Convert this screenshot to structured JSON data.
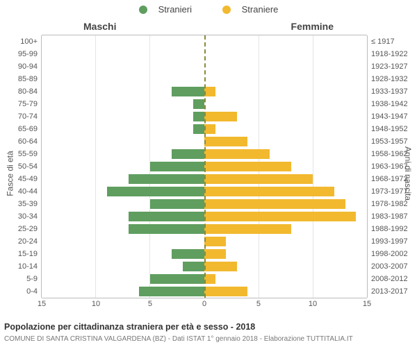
{
  "type": "population-pyramid",
  "legend": {
    "male": {
      "label": "Stranieri",
      "color": "#5f9e5f"
    },
    "female": {
      "label": "Straniere",
      "color": "#f2b92f"
    }
  },
  "side_titles": {
    "left": "Maschi",
    "right": "Femmine"
  },
  "y_axis_left_title": "Fasce di età",
  "y_axis_right_title": "Anni di nascita",
  "x_axis": {
    "max": 15,
    "ticks": [
      15,
      10,
      5,
      0,
      5,
      10,
      15
    ]
  },
  "grid_color": "#e5e5e5",
  "center_line_color": "#8a8a3a",
  "background_color": "#ffffff",
  "row_font_size": 11,
  "rows": [
    {
      "age": "100+",
      "years": "≤ 1917",
      "male": 0,
      "female": 0
    },
    {
      "age": "95-99",
      "years": "1918-1922",
      "male": 0,
      "female": 0
    },
    {
      "age": "90-94",
      "years": "1923-1927",
      "male": 0,
      "female": 0
    },
    {
      "age": "85-89",
      "years": "1928-1932",
      "male": 0,
      "female": 0
    },
    {
      "age": "80-84",
      "years": "1933-1937",
      "male": 3,
      "female": 1
    },
    {
      "age": "75-79",
      "years": "1938-1942",
      "male": 1,
      "female": 0
    },
    {
      "age": "70-74",
      "years": "1943-1947",
      "male": 1,
      "female": 3
    },
    {
      "age": "65-69",
      "years": "1948-1952",
      "male": 1,
      "female": 1
    },
    {
      "age": "60-64",
      "years": "1953-1957",
      "male": 0,
      "female": 4
    },
    {
      "age": "55-59",
      "years": "1958-1962",
      "male": 3,
      "female": 6
    },
    {
      "age": "50-54",
      "years": "1963-1967",
      "male": 5,
      "female": 8
    },
    {
      "age": "45-49",
      "years": "1968-1972",
      "male": 7,
      "female": 10
    },
    {
      "age": "40-44",
      "years": "1973-1977",
      "male": 9,
      "female": 12
    },
    {
      "age": "35-39",
      "years": "1978-1982",
      "male": 5,
      "female": 13
    },
    {
      "age": "30-34",
      "years": "1983-1987",
      "male": 7,
      "female": 14
    },
    {
      "age": "25-29",
      "years": "1988-1992",
      "male": 7,
      "female": 8
    },
    {
      "age": "20-24",
      "years": "1993-1997",
      "male": 0,
      "female": 2
    },
    {
      "age": "15-19",
      "years": "1998-2002",
      "male": 3,
      "female": 2
    },
    {
      "age": "10-14",
      "years": "2003-2007",
      "male": 2,
      "female": 3
    },
    {
      "age": "5-9",
      "years": "2008-2012",
      "male": 5,
      "female": 1
    },
    {
      "age": "0-4",
      "years": "2013-2017",
      "male": 6,
      "female": 4
    }
  ],
  "caption": "Popolazione per cittadinanza straniera per età e sesso - 2018",
  "subcaption": "COMUNE DI SANTA CRISTINA VALGARDENA (BZ) - Dati ISTAT 1° gennaio 2018 - Elaborazione TUTTITALIA.IT"
}
